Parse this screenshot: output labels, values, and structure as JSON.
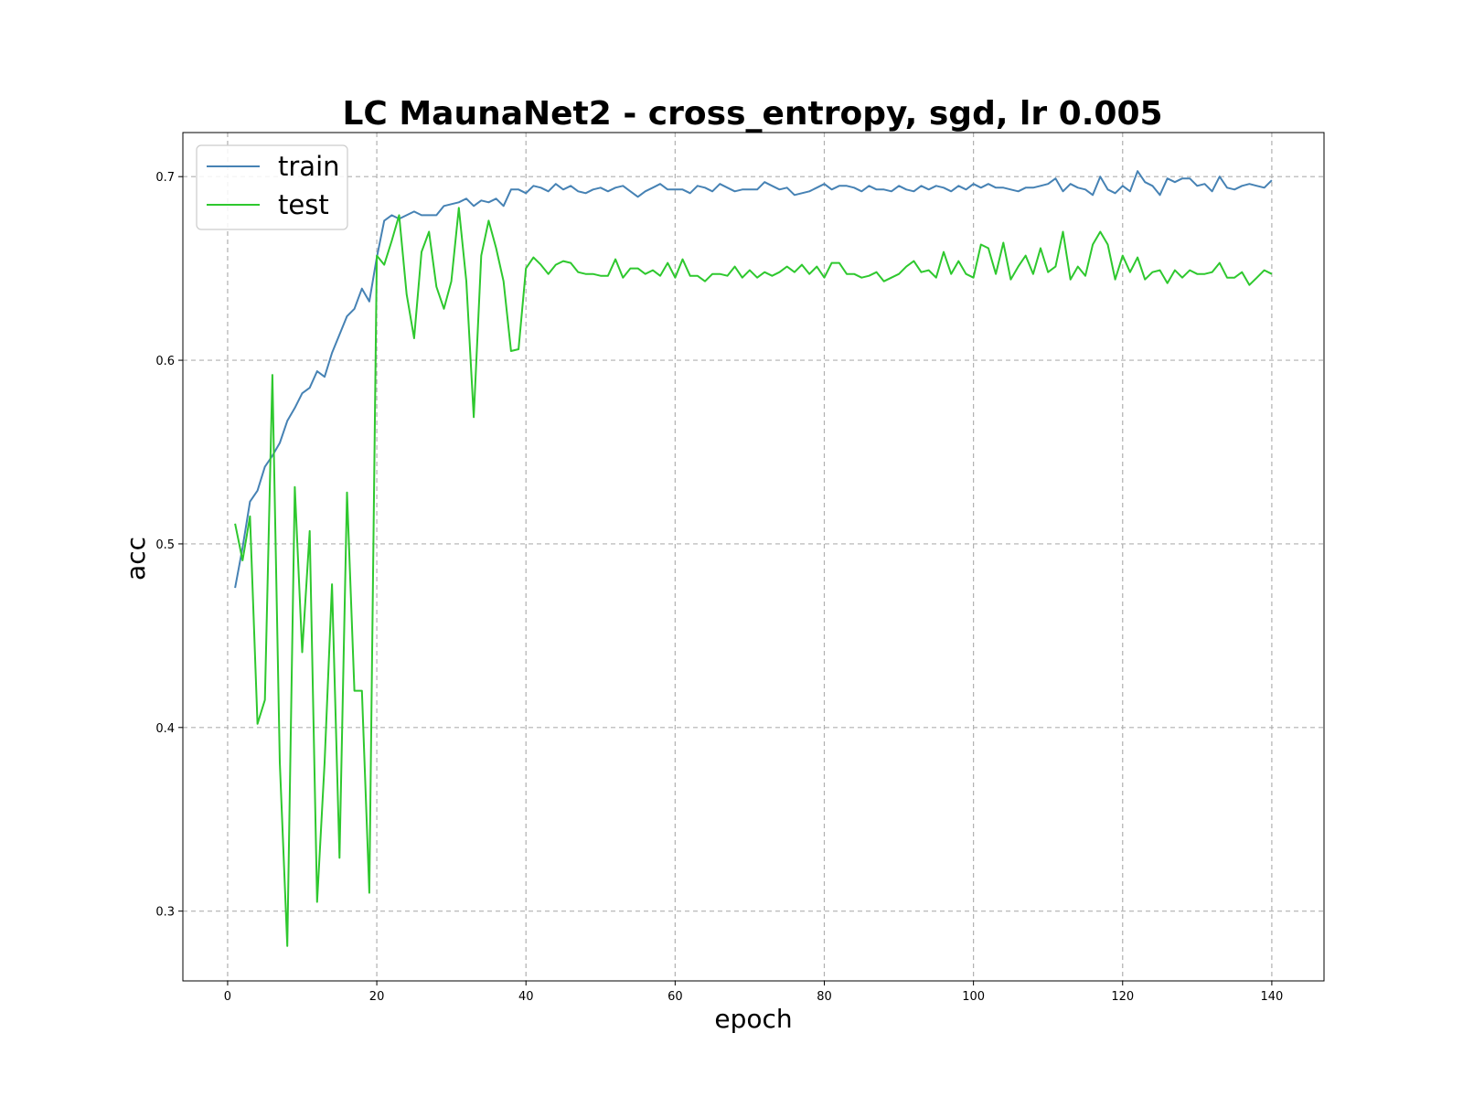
{
  "chart_data": {
    "type": "line",
    "title": "LC MaunaNet2 - cross_entropy, sgd, lr 0.005",
    "xlabel": "epoch",
    "ylabel": "acc",
    "xlim": [
      -6,
      147
    ],
    "ylim": [
      0.262,
      0.724
    ],
    "xticks": [
      0,
      20,
      40,
      60,
      80,
      100,
      120,
      140
    ],
    "xtick_labels": [
      "0",
      "20",
      "40",
      "60",
      "80",
      "100",
      "120",
      "140"
    ],
    "yticks": [
      0.3,
      0.4,
      0.5,
      0.6,
      0.7
    ],
    "ytick_labels": [
      "0.3",
      "0.4",
      "0.5",
      "0.6",
      "0.7"
    ],
    "grid": true,
    "legend_position": "top-left",
    "x": [
      1,
      2,
      3,
      4,
      5,
      6,
      7,
      8,
      9,
      10,
      11,
      12,
      13,
      14,
      15,
      16,
      17,
      18,
      19,
      20,
      21,
      22,
      23,
      24,
      25,
      26,
      27,
      28,
      29,
      30,
      31,
      32,
      33,
      34,
      35,
      36,
      37,
      38,
      39,
      40,
      41,
      42,
      43,
      44,
      45,
      46,
      47,
      48,
      49,
      50,
      51,
      52,
      53,
      54,
      55,
      56,
      57,
      58,
      59,
      60,
      61,
      62,
      63,
      64,
      65,
      66,
      67,
      68,
      69,
      70,
      71,
      72,
      73,
      74,
      75,
      76,
      77,
      78,
      79,
      80,
      81,
      82,
      83,
      84,
      85,
      86,
      87,
      88,
      89,
      90,
      91,
      92,
      93,
      94,
      95,
      96,
      97,
      98,
      99,
      100,
      101,
      102,
      103,
      104,
      105,
      106,
      107,
      108,
      109,
      110,
      111,
      112,
      113,
      114,
      115,
      116,
      117,
      118,
      119,
      120,
      121,
      122,
      123,
      124,
      125,
      126,
      127,
      128,
      129,
      130,
      131,
      132,
      133,
      134,
      135,
      136,
      137,
      138,
      139,
      140
    ],
    "series": [
      {
        "name": "train",
        "color": "#4682b4",
        "values": [
          0.476,
          0.498,
          0.523,
          0.529,
          0.542,
          0.548,
          0.555,
          0.567,
          0.574,
          0.582,
          0.585,
          0.594,
          0.591,
          0.604,
          0.614,
          0.624,
          0.628,
          0.639,
          0.632,
          0.656,
          0.676,
          0.679,
          0.677,
          0.679,
          0.681,
          0.679,
          0.679,
          0.679,
          0.684,
          0.685,
          0.686,
          0.688,
          0.684,
          0.687,
          0.686,
          0.688,
          0.684,
          0.693,
          0.693,
          0.691,
          0.695,
          0.694,
          0.692,
          0.696,
          0.693,
          0.695,
          0.692,
          0.691,
          0.693,
          0.694,
          0.692,
          0.694,
          0.695,
          0.692,
          0.689,
          0.692,
          0.694,
          0.696,
          0.693,
          0.693,
          0.693,
          0.691,
          0.695,
          0.694,
          0.692,
          0.696,
          0.694,
          0.692,
          0.693,
          0.693,
          0.693,
          0.697,
          0.695,
          0.693,
          0.694,
          0.69,
          0.691,
          0.692,
          0.694,
          0.696,
          0.693,
          0.695,
          0.695,
          0.694,
          0.692,
          0.695,
          0.693,
          0.693,
          0.692,
          0.695,
          0.693,
          0.692,
          0.695,
          0.693,
          0.695,
          0.694,
          0.692,
          0.695,
          0.693,
          0.696,
          0.694,
          0.696,
          0.694,
          0.694,
          0.693,
          0.692,
          0.694,
          0.694,
          0.695,
          0.696,
          0.699,
          0.692,
          0.696,
          0.694,
          0.693,
          0.69,
          0.7,
          0.693,
          0.691,
          0.695,
          0.692,
          0.703,
          0.697,
          0.695,
          0.69,
          0.699,
          0.697,
          0.699,
          0.699,
          0.695,
          0.696,
          0.692,
          0.7,
          0.694,
          0.693,
          0.695,
          0.696,
          0.695,
          0.694,
          0.698
        ]
      },
      {
        "name": "test",
        "color": "#2ec82e",
        "values": [
          0.511,
          0.491,
          0.515,
          0.402,
          0.415,
          0.592,
          0.381,
          0.281,
          0.531,
          0.441,
          0.507,
          0.305,
          0.381,
          0.478,
          0.329,
          0.528,
          0.42,
          0.42,
          0.31,
          0.657,
          0.652,
          0.665,
          0.679,
          0.636,
          0.612,
          0.659,
          0.67,
          0.64,
          0.628,
          0.643,
          0.683,
          0.643,
          0.569,
          0.657,
          0.676,
          0.661,
          0.643,
          0.605,
          0.606,
          0.65,
          0.656,
          0.652,
          0.647,
          0.652,
          0.654,
          0.653,
          0.648,
          0.647,
          0.647,
          0.646,
          0.646,
          0.655,
          0.645,
          0.65,
          0.65,
          0.647,
          0.649,
          0.646,
          0.653,
          0.645,
          0.655,
          0.646,
          0.646,
          0.643,
          0.647,
          0.647,
          0.646,
          0.651,
          0.645,
          0.649,
          0.645,
          0.648,
          0.646,
          0.648,
          0.651,
          0.648,
          0.652,
          0.647,
          0.651,
          0.645,
          0.653,
          0.653,
          0.647,
          0.647,
          0.645,
          0.646,
          0.648,
          0.643,
          0.645,
          0.647,
          0.651,
          0.654,
          0.648,
          0.649,
          0.645,
          0.659,
          0.647,
          0.654,
          0.647,
          0.645,
          0.663,
          0.661,
          0.647,
          0.664,
          0.644,
          0.651,
          0.657,
          0.647,
          0.661,
          0.648,
          0.651,
          0.67,
          0.644,
          0.651,
          0.646,
          0.663,
          0.67,
          0.663,
          0.644,
          0.657,
          0.648,
          0.656,
          0.644,
          0.648,
          0.649,
          0.642,
          0.649,
          0.645,
          0.649,
          0.647,
          0.647,
          0.648,
          0.653,
          0.645,
          0.645,
          0.648,
          0.641,
          0.645,
          0.649,
          0.647
        ]
      }
    ]
  }
}
